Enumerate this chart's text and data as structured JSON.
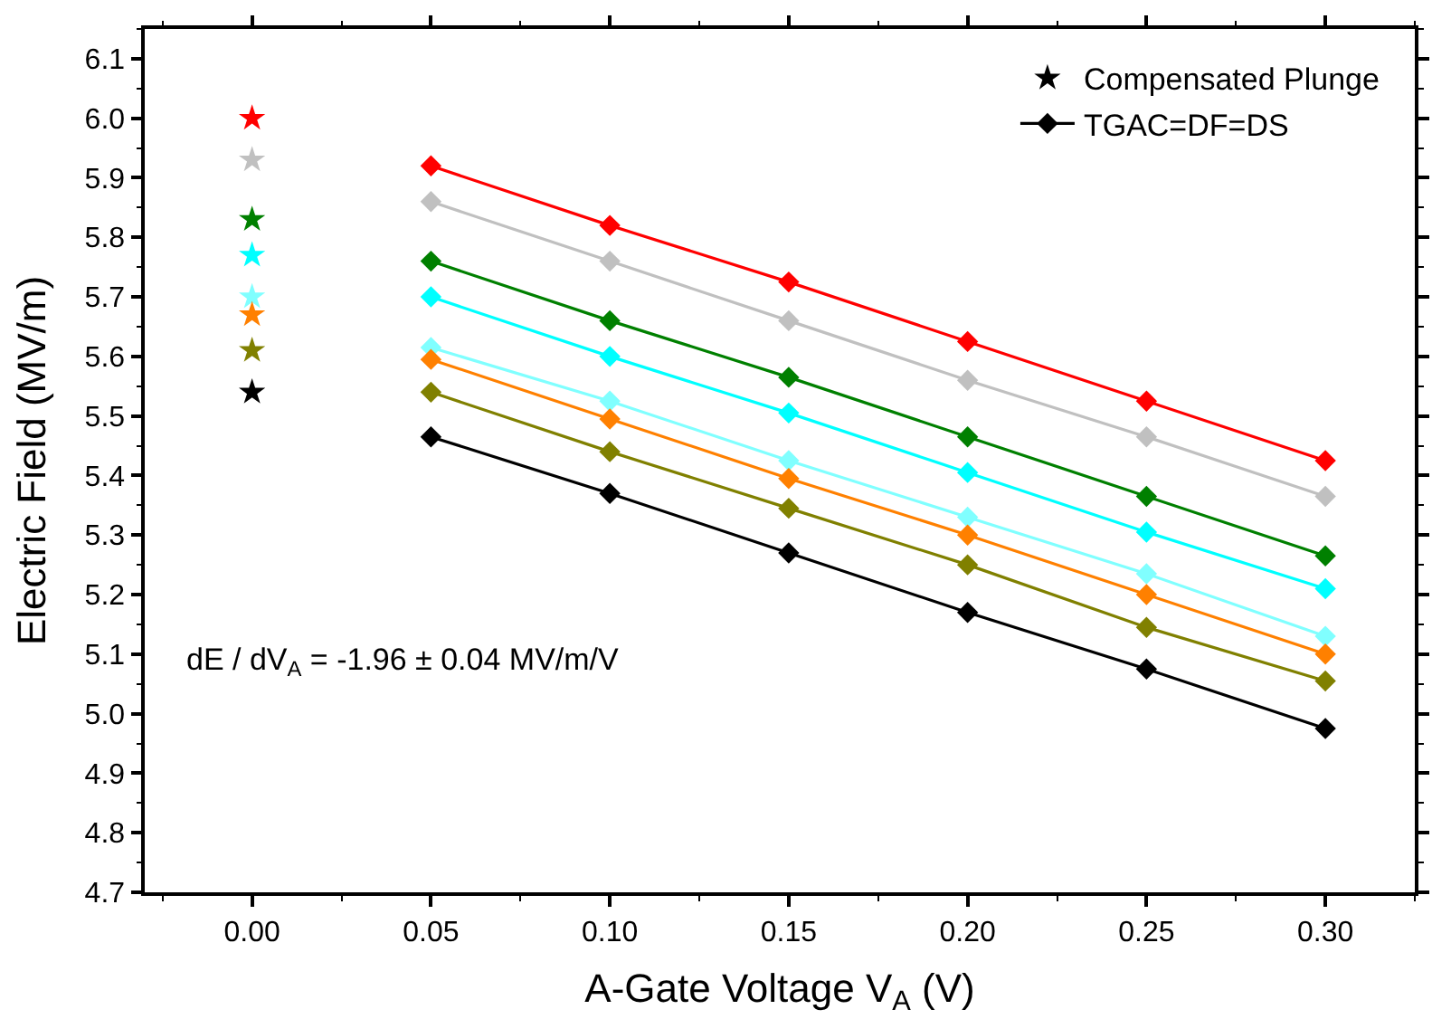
{
  "chart_data": {
    "type": "line",
    "xlabel": "A-Gate Voltage V$_{A}$ (V)",
    "ylabel": "Electric Field (MV/m)",
    "xlim": [
      -0.03,
      0.325
    ],
    "xticks": [
      {
        "value": 0,
        "label": "0.00"
      },
      0.05,
      {
        "value": 0.1,
        "label": "0.10"
      },
      0.15,
      {
        "value": 0.2,
        "label": "0.20"
      },
      0.25,
      {
        "value": 0.3,
        "label": "0.30"
      }
    ],
    "ylim": [
      4.7,
      6.15
    ],
    "yticks": [
      4.7,
      4.8,
      4.9,
      {
        "value": 5,
        "label": "5.0"
      },
      5.1,
      5.2,
      5.3,
      5.4,
      5.5,
      5.6,
      5.7,
      5.8,
      5.9,
      {
        "value": 6,
        "label": "6.0"
      },
      6.1
    ],
    "legend": "top right",
    "annotations": [
      "dE / dV$_{A}$ = -1.96 ± 0.04 MV/m/V"
    ],
    "series": [
      {
        "type": "scatter",
        "marker": "star",
        "color": "#ff0000",
        "x": [
          0
        ],
        "values": [
          6.0
        ]
      },
      {
        "type": "scatter",
        "marker": "star",
        "color": "#c0c0c0",
        "x": [
          0
        ],
        "values": [
          5.93
        ]
      },
      {
        "type": "scatter",
        "marker": "star",
        "color": "#008000",
        "x": [
          0
        ],
        "values": [
          5.83
        ]
      },
      {
        "type": "scatter",
        "marker": "star",
        "color": "#00ffff",
        "x": [
          0
        ],
        "values": [
          5.77
        ]
      },
      {
        "type": "scatter",
        "marker": "star",
        "color": "#80ffff",
        "x": [
          0
        ],
        "values": [
          5.7
        ]
      },
      {
        "type": "scatter",
        "marker": "star",
        "color": "#ff8000",
        "x": [
          0
        ],
        "values": [
          5.67
        ]
      },
      {
        "type": "scatter",
        "marker": "star",
        "color": "#808000",
        "x": [
          0
        ],
        "values": [
          5.61
        ]
      },
      {
        "type": "scatter",
        "marker": "star",
        "color": "#000000",
        "x": [
          0
        ],
        "values": [
          5.54
        ],
        "name": "Compensated Plunge"
      },
      {
        "marker": "diamond",
        "color": "#ff0000",
        "x": [
          0.05,
          0.1,
          0.15,
          0.2,
          0.25,
          0.3
        ],
        "values": [
          5.92,
          5.82,
          5.725,
          5.625,
          5.525,
          5.425
        ]
      },
      {
        "marker": "diamond",
        "color": "#c0c0c0",
        "x": [
          0.05,
          0.1,
          0.15,
          0.2,
          0.25,
          0.3
        ],
        "values": [
          5.86,
          5.76,
          5.66,
          5.56,
          5.465,
          5.365
        ]
      },
      {
        "marker": "diamond",
        "color": "#008000",
        "x": [
          0.05,
          0.1,
          0.15,
          0.2,
          0.25,
          0.3
        ],
        "values": [
          5.76,
          5.66,
          5.565,
          5.465,
          5.365,
          5.265
        ]
      },
      {
        "marker": "diamond",
        "color": "#00ffff",
        "x": [
          0.05,
          0.1,
          0.15,
          0.2,
          0.25,
          0.3
        ],
        "values": [
          5.7,
          5.6,
          5.505,
          5.405,
          5.305,
          5.21
        ]
      },
      {
        "marker": "diamond",
        "color": "#80ffff",
        "x": [
          0.05,
          0.1,
          0.15,
          0.2,
          0.25,
          0.3
        ],
        "values": [
          5.615,
          5.525,
          5.425,
          5.33,
          5.235,
          5.13
        ]
      },
      {
        "marker": "diamond",
        "color": "#ff8000",
        "x": [
          0.05,
          0.1,
          0.15,
          0.2,
          0.25,
          0.3
        ],
        "values": [
          5.595,
          5.495,
          5.395,
          5.3,
          5.2,
          5.1
        ]
      },
      {
        "marker": "diamond",
        "color": "#808000",
        "x": [
          0.05,
          0.1,
          0.15,
          0.2,
          0.25,
          0.3
        ],
        "values": [
          5.54,
          5.44,
          5.345,
          5.25,
          5.145,
          5.055
        ]
      },
      {
        "marker": "diamond",
        "color": "#000000",
        "x": [
          0.05,
          0.1,
          0.15,
          0.2,
          0.25,
          0.3
        ],
        "values": [
          5.465,
          5.37,
          5.27,
          5.17,
          5.075,
          4.975
        ],
        "name": "TGAC=DF=DS"
      }
    ]
  }
}
